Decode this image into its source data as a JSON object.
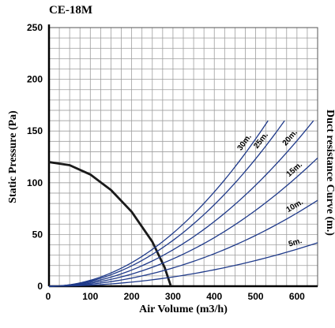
{
  "chart_data": {
    "type": "line",
    "title": "CE-18M",
    "xlabel": "Air Volume (m3/h)",
    "ylabel": "Static Pressure (Pa)",
    "right_label": "Duct resistance Curve (m.)",
    "xlim": [
      0,
      650
    ],
    "ylim": [
      0,
      250
    ],
    "xticks": [
      0,
      100,
      200,
      300,
      400,
      500,
      600
    ],
    "yticks": [
      0,
      50,
      100,
      150,
      200,
      250
    ],
    "grid": true,
    "colors": {
      "fan_curve": "#1a1a1a",
      "duct_curves": "#1f3a8a",
      "grid": "#9e9e9e"
    },
    "series": [
      {
        "role": "fan",
        "x": [
          0,
          50,
          100,
          150,
          200,
          250,
          280,
          295
        ],
        "y": [
          120,
          117,
          108,
          93,
          72,
          43,
          18,
          0
        ]
      },
      {
        "name": "5m.",
        "role": "duct",
        "x": [
          0,
          100,
          200,
          300,
          400,
          500,
          650
        ],
        "y": [
          0,
          1,
          4,
          9,
          16,
          26,
          42
        ]
      },
      {
        "name": "10m.",
        "role": "duct",
        "x": [
          0,
          100,
          200,
          300,
          400,
          500,
          650
        ],
        "y": [
          0,
          2,
          8,
          18,
          32,
          50,
          83
        ]
      },
      {
        "name": "15m.",
        "role": "duct",
        "x": [
          0,
          100,
          200,
          300,
          400,
          500,
          650
        ],
        "y": [
          0,
          3,
          12,
          27,
          48,
          74,
          124
        ]
      },
      {
        "name": "20m.",
        "role": "duct",
        "x": [
          0,
          100,
          200,
          300,
          400,
          500,
          640
        ],
        "y": [
          0,
          4,
          16,
          36,
          64,
          99,
          160
        ]
      },
      {
        "name": "25m.",
        "role": "duct",
        "x": [
          0,
          100,
          200,
          300,
          400,
          500,
          570
        ],
        "y": [
          0,
          5,
          20,
          44,
          79,
          123,
          160
        ]
      },
      {
        "name": "30m.",
        "role": "duct",
        "x": [
          0,
          100,
          200,
          300,
          400,
          500,
          530
        ],
        "y": [
          0,
          6,
          23,
          51,
          91,
          142,
          160
        ]
      }
    ]
  }
}
